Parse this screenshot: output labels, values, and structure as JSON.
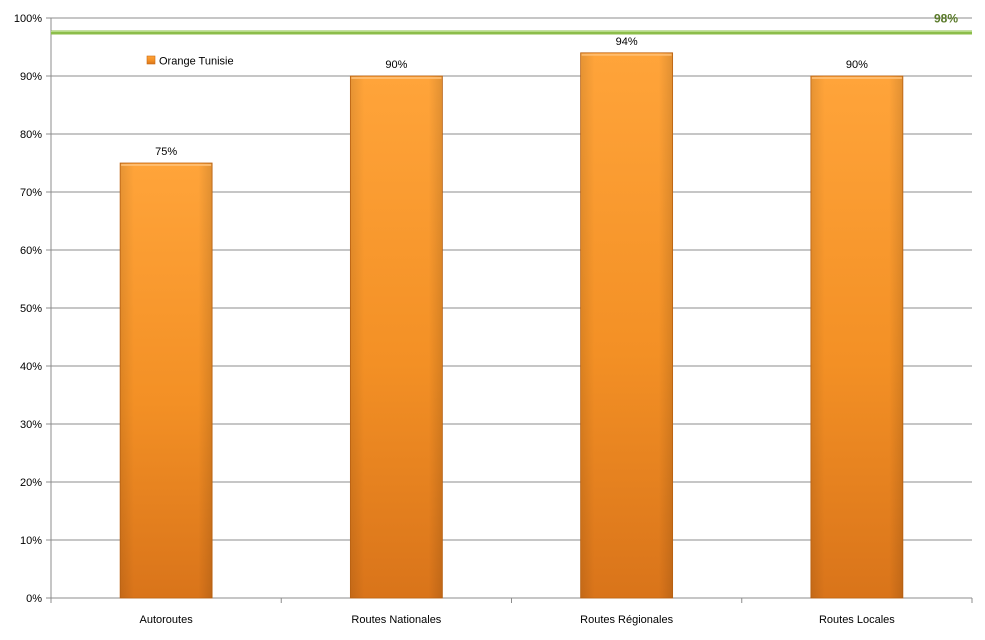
{
  "chart_data": {
    "type": "bar",
    "categories": [
      "Autoroutes",
      "Routes Nationales",
      "Routes Régionales",
      "Routes Locales"
    ],
    "series": [
      {
        "name": "Orange Tunisie",
        "values": [
          75,
          90,
          94,
          90
        ],
        "color": "#f7901e"
      }
    ],
    "data_labels": [
      "75%",
      "90%",
      "94%",
      "90%"
    ],
    "ylim": [
      0,
      100
    ],
    "ytick_values": [
      0,
      10,
      20,
      30,
      40,
      50,
      60,
      70,
      80,
      90,
      100
    ],
    "ytick_labels": [
      "0%",
      "10%",
      "20%",
      "30%",
      "40%",
      "50%",
      "60%",
      "70%",
      "80%",
      "90%",
      "100%"
    ],
    "grid": true,
    "legend_position": "top-left",
    "target_line": {
      "value": 97.5,
      "label": "98%",
      "color": "#8cbd4a",
      "label_color": "#5a7a2a"
    }
  }
}
